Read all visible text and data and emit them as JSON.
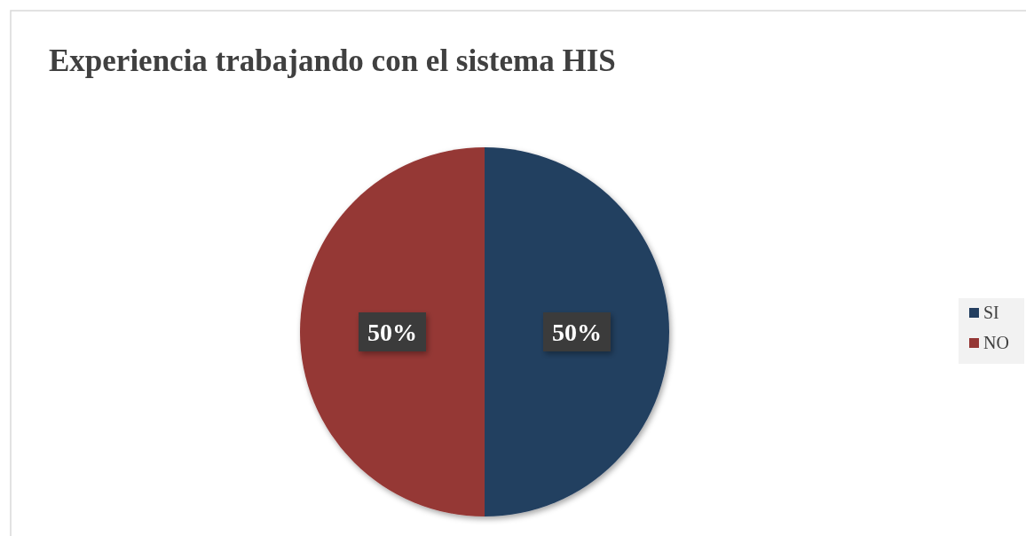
{
  "chart_data": {
    "type": "pie",
    "title": "Experiencia trabajando con el sistema HIS",
    "categories": [
      "SI",
      "NO"
    ],
    "values": [
      50,
      50
    ],
    "colors": [
      "#243f60",
      "#953735"
    ],
    "value_labels": [
      "50%",
      "50%"
    ],
    "legend": "right"
  }
}
